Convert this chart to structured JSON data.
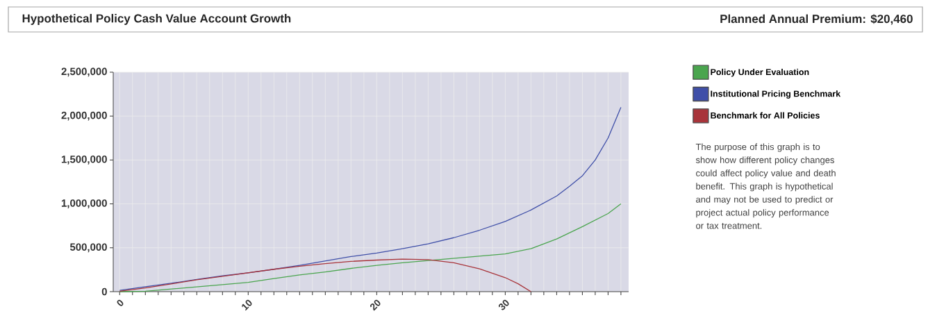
{
  "chart_data": {
    "type": "line",
    "title": "Hypothetical Policy Cash Value Account Growth",
    "subtitle": "Planned Annual Premium: $20,460",
    "annotations": [
      "The purpose of this graph is to show how different policy changes could affect policy value and death benefit. This graph is hypothetical and may not be used to predict or project actual policy performance or tax treatment."
    ],
    "xlim": [
      -0.5,
      39.6
    ],
    "xticks": [
      0,
      {
        "value": 1,
        "label": null
      },
      {
        "value": 2,
        "label": null
      },
      {
        "value": 3,
        "label": null
      },
      {
        "value": 4,
        "label": null
      },
      {
        "value": 5,
        "label": null
      },
      {
        "value": 6,
        "label": null
      },
      {
        "value": 7,
        "label": null
      },
      {
        "value": 8,
        "label": null
      },
      {
        "value": 9,
        "label": null
      },
      10,
      {
        "value": 11,
        "label": null
      },
      {
        "value": 12,
        "label": null
      },
      {
        "value": 13,
        "label": null
      },
      {
        "value": 14,
        "label": null
      },
      {
        "value": 15,
        "label": null
      },
      {
        "value": 16,
        "label": null
      },
      {
        "value": 17,
        "label": null
      },
      {
        "value": 18,
        "label": null
      },
      {
        "value": 19,
        "label": null
      },
      20,
      {
        "value": 21,
        "label": null
      },
      {
        "value": 22,
        "label": null
      },
      {
        "value": 23,
        "label": null
      },
      {
        "value": 24,
        "label": null
      },
      {
        "value": 25,
        "label": null
      },
      {
        "value": 26,
        "label": null
      },
      {
        "value": 27,
        "label": null
      },
      {
        "value": 28,
        "label": null
      },
      {
        "value": 29,
        "label": null
      },
      30,
      {
        "value": 31,
        "label": null
      },
      {
        "value": 32,
        "label": null
      },
      {
        "value": 33,
        "label": null
      },
      {
        "value": 34,
        "label": null
      },
      {
        "value": 35,
        "label": null
      },
      {
        "value": 36,
        "label": null
      },
      {
        "value": 37,
        "label": null
      },
      {
        "value": 38,
        "label": null
      },
      {
        "value": 39,
        "label": null
      }
    ],
    "ylim": [
      0,
      2500000
    ],
    "yticks": [
      0,
      {
        "value": 500000,
        "label": "500,000"
      },
      {
        "value": 1000000,
        "label": "1,000,000"
      },
      {
        "value": 1500000,
        "label": "1,500,000"
      },
      {
        "value": 2000000,
        "label": "2,000,000"
      },
      {
        "value": 2500000,
        "label": "2,500,000"
      }
    ],
    "grid": true,
    "legend": "right",
    "marker": "none",
    "line_style": "solid",
    "series": [
      {
        "name": "Policy Under Evaluation",
        "color": "#4aa54e",
        "x": [
          0,
          2,
          4,
          6,
          8,
          10,
          12,
          14,
          16,
          18,
          20,
          22,
          24,
          26,
          28,
          30,
          32,
          34,
          36,
          38,
          39
        ],
        "values": [
          0,
          5000,
          30000,
          55000,
          80000,
          105000,
          150000,
          190000,
          225000,
          265000,
          300000,
          330000,
          355000,
          380000,
          405000,
          430000,
          490000,
          600000,
          740000,
          890000,
          1000000
        ]
      },
      {
        "name": "Institutional Pricing Benchmark",
        "color": "#3f4fa8",
        "x": [
          0,
          2,
          4,
          6,
          8,
          10,
          12,
          14,
          16,
          18,
          20,
          22,
          24,
          26,
          28,
          30,
          32,
          34,
          35,
          36,
          37,
          38,
          39
        ],
        "values": [
          15000,
          56000,
          95000,
          140000,
          180000,
          215000,
          255000,
          300000,
          350000,
          400000,
          440000,
          490000,
          545000,
          615000,
          700000,
          800000,
          930000,
          1090000,
          1200000,
          1320000,
          1500000,
          1750000,
          2100000
        ]
      },
      {
        "name": "Benchmark for All Policies",
        "color": "#a8343a",
        "x": [
          0,
          2,
          4,
          6,
          8,
          10,
          12,
          14,
          16,
          18,
          20,
          22,
          24,
          26,
          28,
          30,
          31,
          32
        ],
        "values": [
          5000,
          42000,
          88000,
          135000,
          175000,
          215000,
          255000,
          290000,
          320000,
          345000,
          360000,
          370000,
          365000,
          330000,
          260000,
          160000,
          90000,
          0
        ]
      }
    ]
  }
}
